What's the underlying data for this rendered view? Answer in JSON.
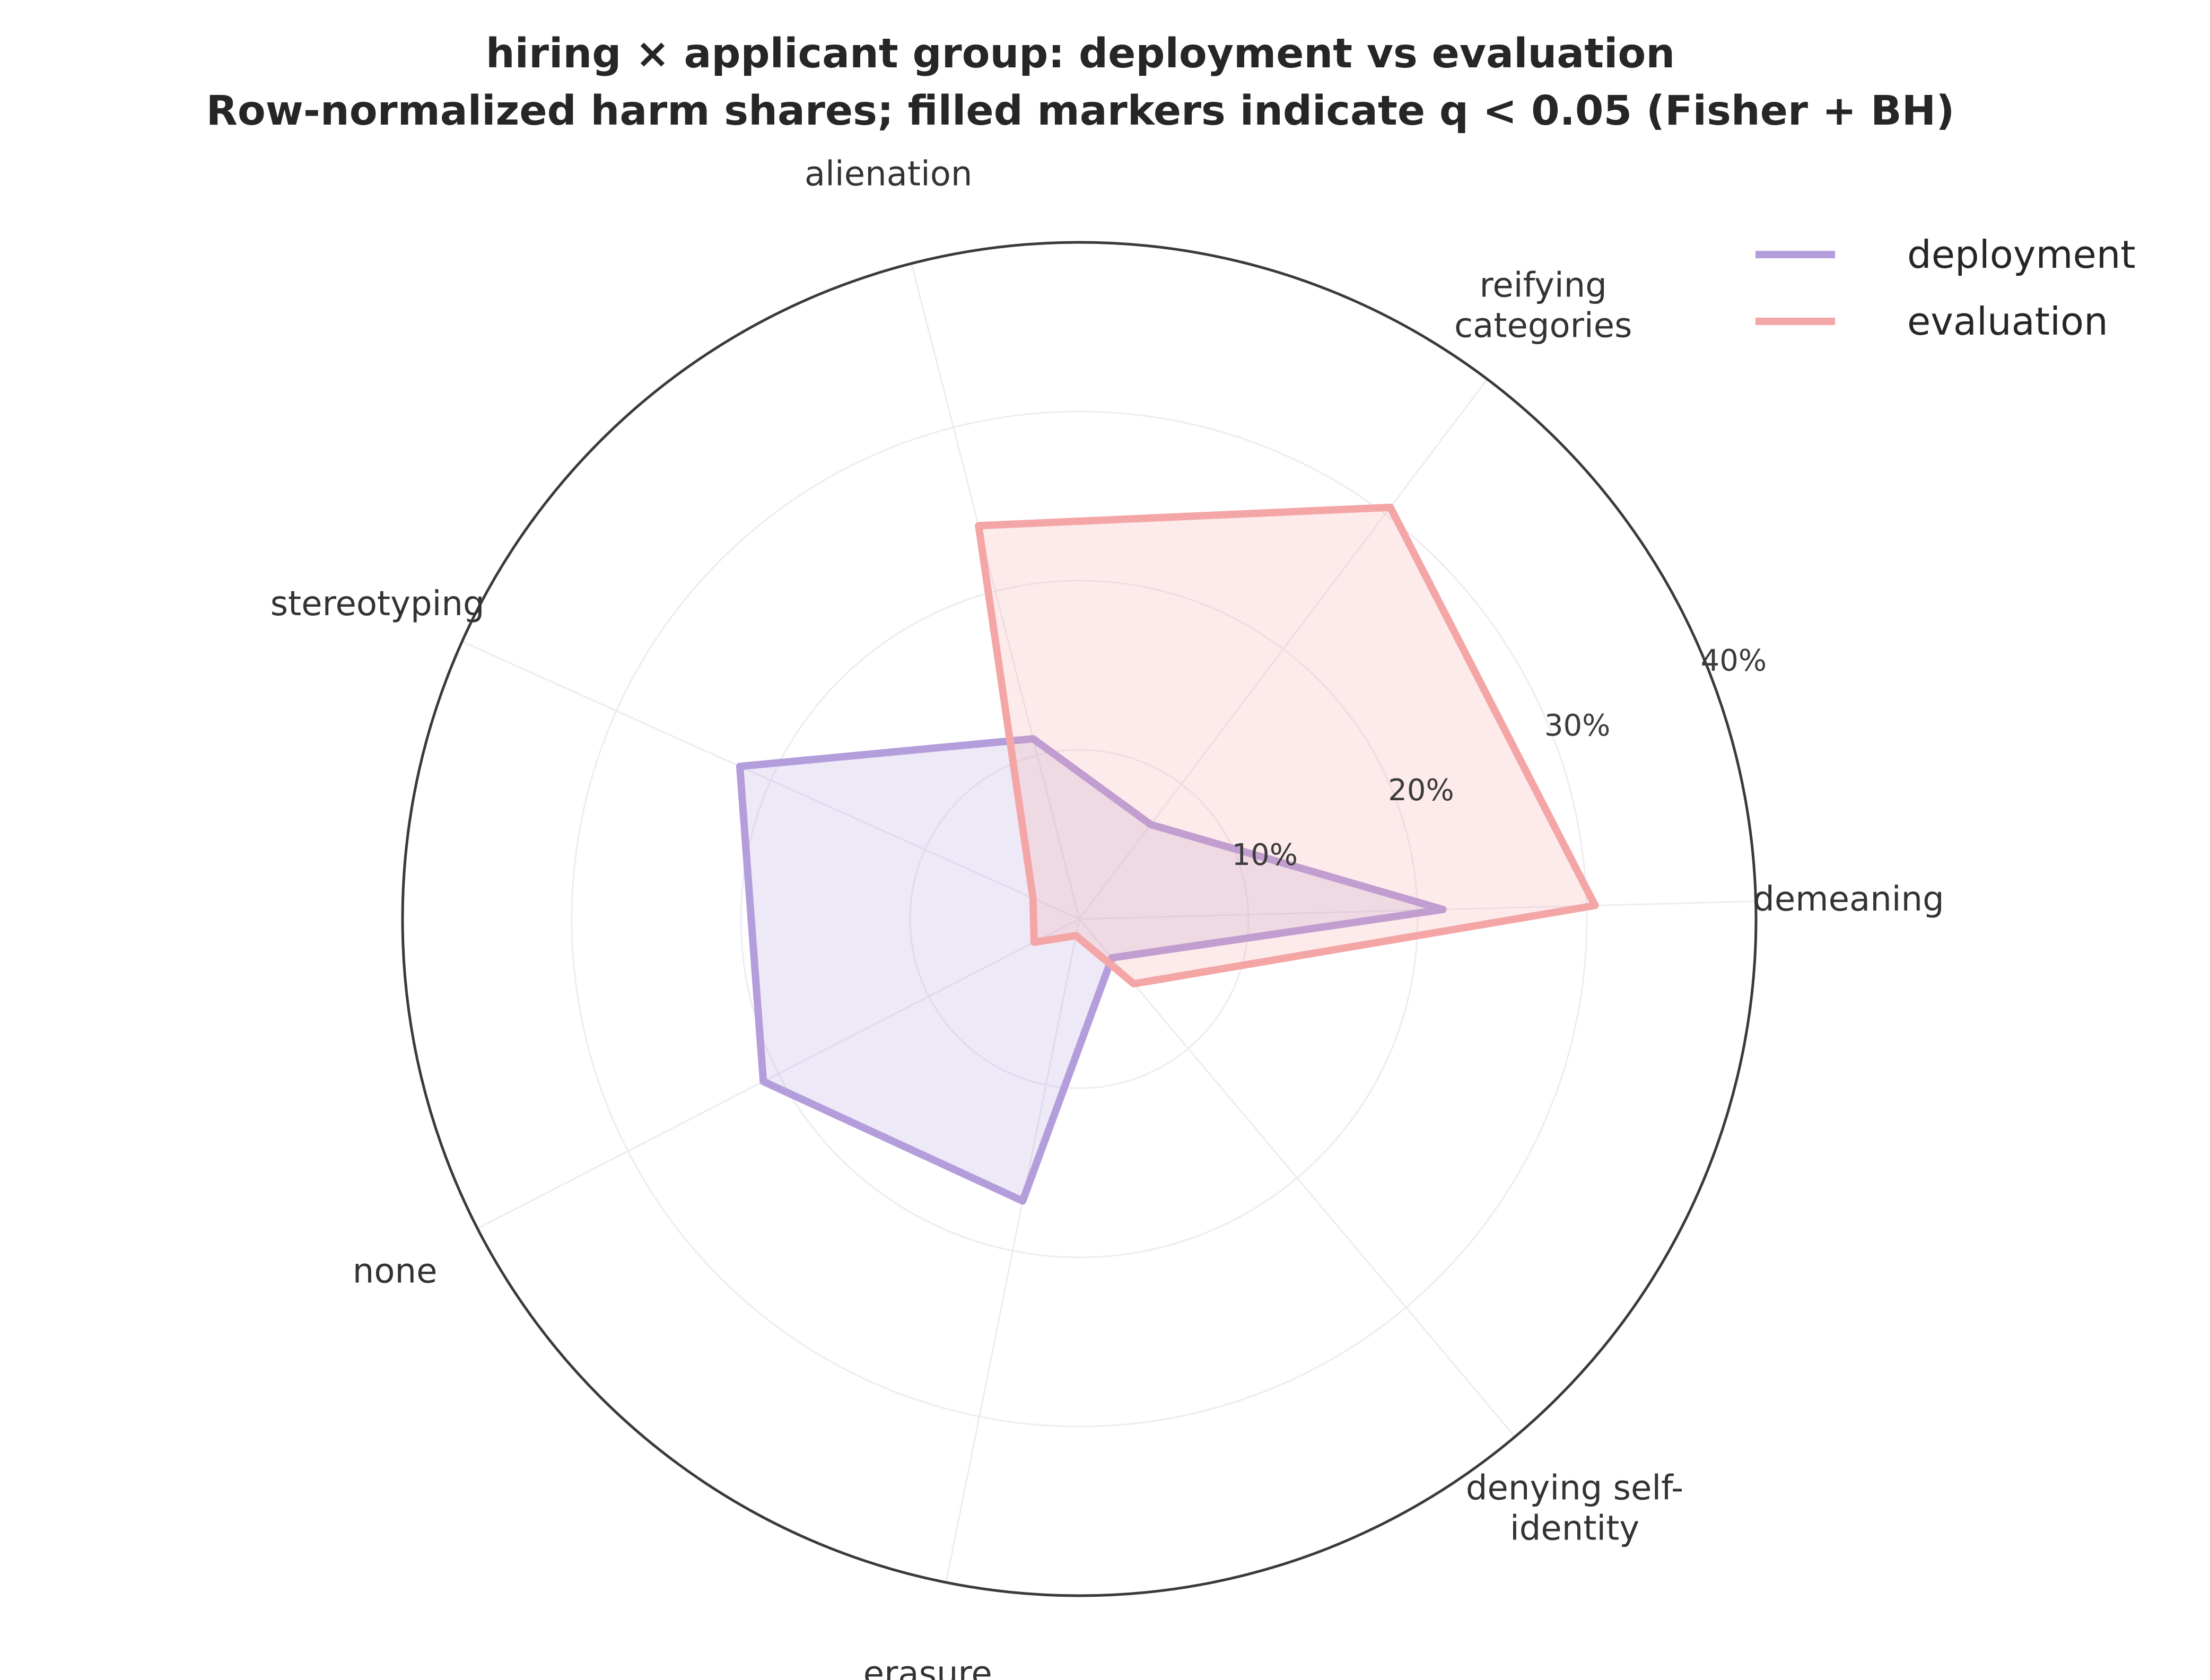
{
  "chart_data": {
    "type": "radar",
    "title": "hiring × applicant group: deployment vs evaluation",
    "subtitle": "Row-normalized harm shares; filled markers indicate q < 0.05 (Fisher + BH)",
    "categories": [
      "demeaning",
      "reifying categories",
      "alienation",
      "stereotyping",
      "none",
      "erasure",
      "denying self-identity"
    ],
    "r_ticks": [
      10,
      20,
      30,
      40
    ],
    "r_tick_labels": [
      "10%",
      "20%",
      "30%",
      "40%"
    ],
    "rlim": [
      0,
      40
    ],
    "series": [
      {
        "name": "deployment",
        "values": [
          21.5,
          7.0,
          11.0,
          22.0,
          21.0,
          17.0,
          3.0
        ]
      },
      {
        "name": "evaluation",
        "values": [
          30.5,
          30.5,
          24.0,
          3.0,
          3.0,
          1.0,
          5.0
        ]
      }
    ],
    "colors": {
      "deployment": "#b39ddb",
      "evaluation": "#f4a6a6"
    },
    "legend_position": "top-right",
    "grid": true
  }
}
